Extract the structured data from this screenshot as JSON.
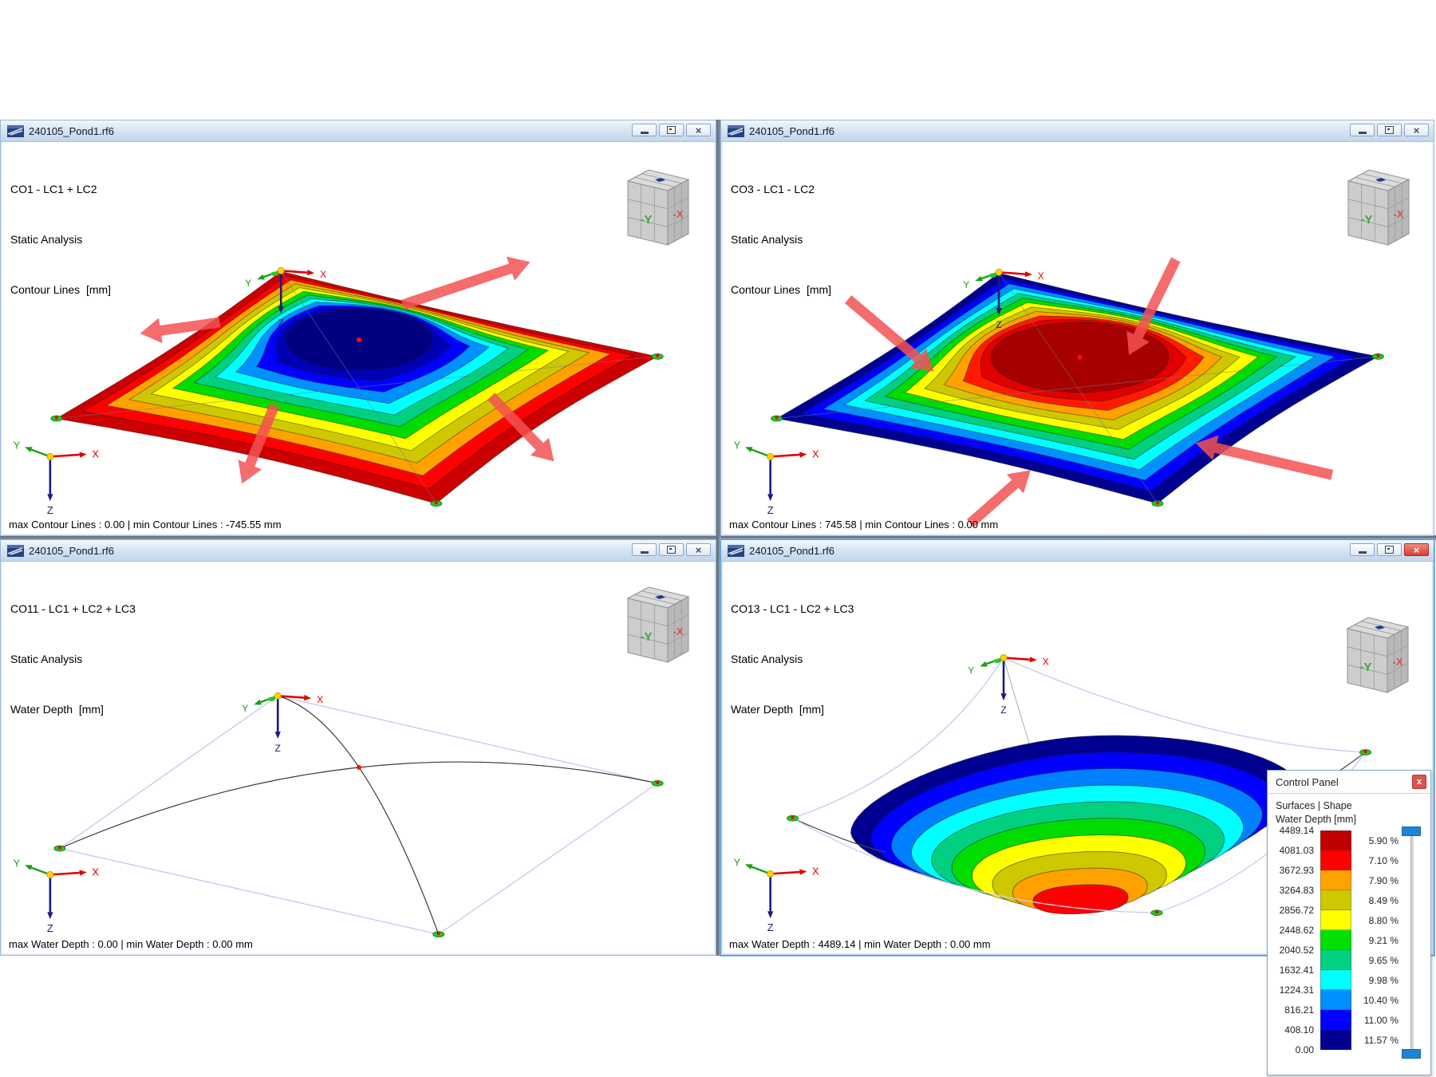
{
  "app": {
    "file_title": "240105_Pond1.rf6"
  },
  "windows": [
    {
      "combo": "CO1 - LC1 + LC2",
      "analysis": "Static Analysis",
      "result": "Contour Lines  [mm]",
      "status": "max Contour Lines : 0.00 | min Contour Lines : -745.55 mm"
    },
    {
      "combo": "CO3 - LC1 - LC2",
      "analysis": "Static Analysis",
      "result": "Contour Lines  [mm]",
      "status": "max Contour Lines : 745.58 | min Contour Lines : 0.00 mm"
    },
    {
      "combo": "CO11 - LC1 + LC2 + LC3",
      "analysis": "Static Analysis",
      "result": "Water Depth  [mm]",
      "status": "max Water Depth : 0.00 | min Water Depth : 0.00 mm"
    },
    {
      "combo": "CO13 - LC1 - LC2 + LC3",
      "analysis": "Static Analysis",
      "result": "Water Depth  [mm]",
      "status": "max Water Depth : 4489.14 | min Water Depth : 0.00 mm"
    }
  ],
  "axis_labels": {
    "x": "X",
    "y": "Y",
    "z": "Z"
  },
  "nav_cube": {
    "front": "-Y",
    "right": "-X"
  },
  "glyphs": {
    "close": "×",
    "panel_close": "x"
  },
  "control_panel": {
    "title": "Control Panel",
    "category": "Surfaces | Shape",
    "quantity": "Water Depth [mm]",
    "values": [
      "4489.14",
      "4081.03",
      "3672.93",
      "3264.83",
      "2856.72",
      "2448.62",
      "2040.52",
      "1632.41",
      "1224.31",
      "816.21",
      "408.10",
      "0.00"
    ],
    "percents": [
      "5.90 %",
      "7.10 %",
      "7.90 %",
      "8.49 %",
      "8.80 %",
      "9.21 %",
      "9.65 %",
      "9.98 %",
      "10.40 %",
      "11.00 %",
      "11.57 %"
    ],
    "scale_colors": [
      "#c00000",
      "#ff0000",
      "#ffa200",
      "#cfc800",
      "#ffff00",
      "#00e000",
      "#00d080",
      "#00ffff",
      "#0090ff",
      "#0000ff",
      "#000090"
    ]
  },
  "colors": {
    "surface_scale_down": [
      "#cc0000",
      "#ff0000",
      "#ffa200",
      "#cfc800",
      "#ffff00",
      "#00dc00",
      "#00d080",
      "#00ffff",
      "#0090ff",
      "#0000ff",
      "#0000b4",
      "#000080"
    ],
    "surface_scale_up": [
      "#000090",
      "#0000ff",
      "#0090ff",
      "#00ffff",
      "#00d080",
      "#00dc00",
      "#ffff00",
      "#cfc800",
      "#ffa200",
      "#ff1a00",
      "#e00000",
      "#a60000"
    ],
    "bowl_bands": [
      "#000090",
      "#0000ff",
      "#0080ff",
      "#00ffff",
      "#00d080",
      "#00dc00",
      "#ffff00",
      "#cfc800",
      "#ffa200",
      "#ff0000"
    ],
    "load_arrow": "rgba(243,82,82,0.85)",
    "axis_x": "#e00000",
    "axis_y": "#18a018",
    "axis_z": "#1a1a80"
  }
}
